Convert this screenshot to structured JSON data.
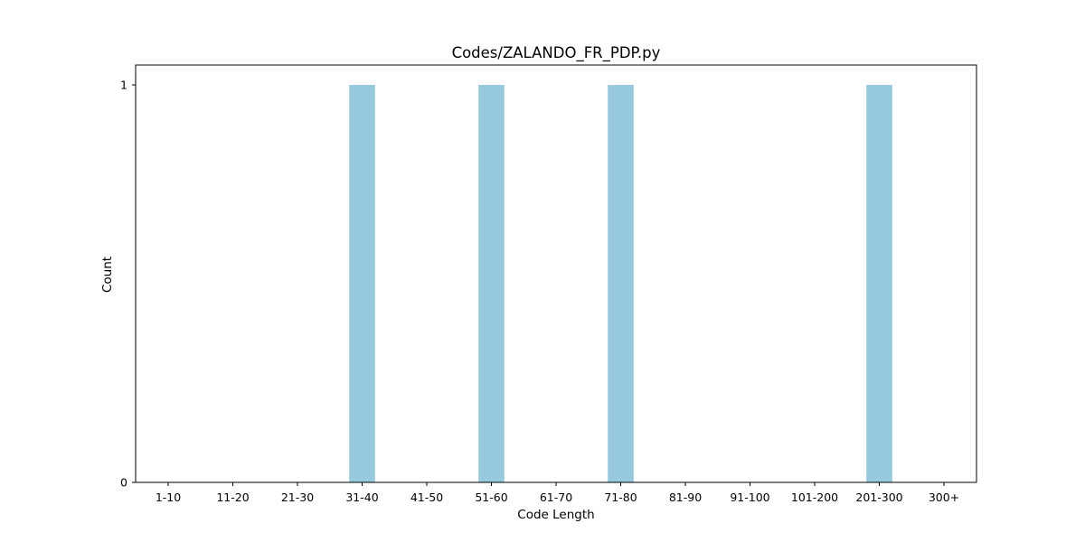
{
  "chart_data": {
    "type": "bar",
    "title": "Codes/ZALANDO_FR_PDP.py",
    "xlabel": "Code Length",
    "ylabel": "Count",
    "categories": [
      "1-10",
      "11-20",
      "21-30",
      "31-40",
      "41-50",
      "51-60",
      "61-70",
      "71-80",
      "81-90",
      "91-100",
      "101-200",
      "201-300",
      "300+"
    ],
    "values": [
      0,
      0,
      0,
      1,
      0,
      1,
      0,
      1,
      0,
      0,
      0,
      1,
      0
    ],
    "yticks": [
      "0",
      "1"
    ],
    "ylim": [
      0,
      1
    ],
    "bar_color": "#96c9de",
    "grid": false,
    "legend": "none"
  }
}
